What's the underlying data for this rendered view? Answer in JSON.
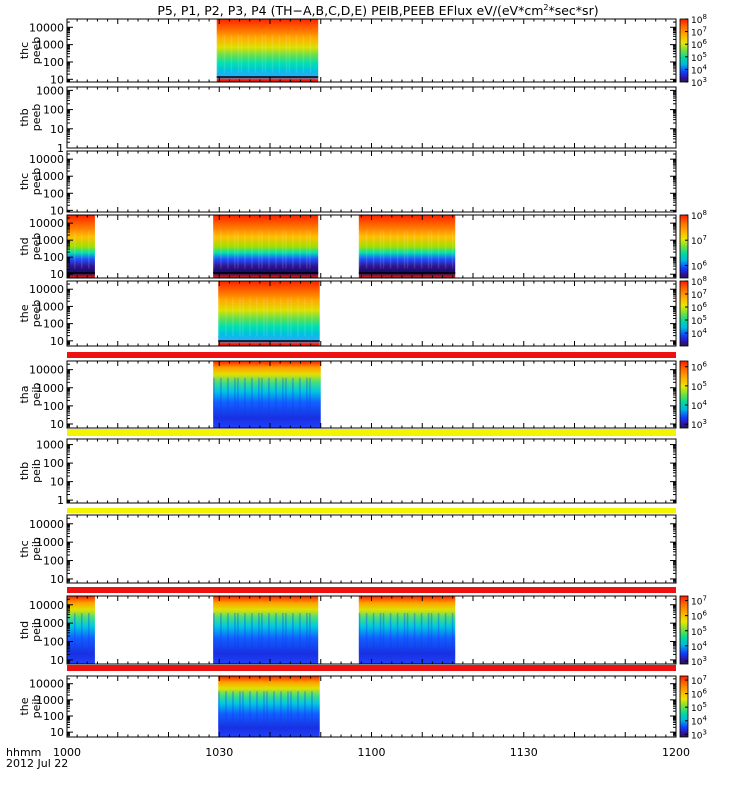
{
  "title_parts": [
    "P5, P1, P2, P3, P4 (TH−A,B,C,D,E) PEIB,PEEB EFlux eV/(eV*cm",
    "2",
    "*sec*sr)"
  ],
  "time_axis": {
    "label1": "hhmm",
    "label2": "2012 Jul 22",
    "ticks": [
      "1000",
      "1030",
      "1100",
      "1130",
      "1200"
    ]
  },
  "chart_data": {
    "type": "heatmap",
    "title": "P5, P1, P2, P3, P4 (TH-A,B,C,D,E) PEIB,PEEB EFlux eV/(eV*cm2*sec*sr)",
    "xlabel": "hhmm / 2012 Jul 22",
    "x_range_minutes": [
      0,
      120
    ],
    "x_ticks": [
      "1000",
      "1030",
      "1100",
      "1130",
      "1200"
    ],
    "panels": [
      {
        "name": "thc-peeb-a",
        "label1": "thc",
        "label2": "peeb",
        "ylim": [
          7,
          30000
        ],
        "ticks": [
          "10",
          "100",
          "1000",
          "10000"
        ],
        "data_segments": [
          [
            29.5,
            49.5
          ]
        ],
        "lineband": true,
        "cbar": {
          "ticks": [
            {
              "b": "10",
              "e": "8"
            },
            {
              "b": "10",
              "e": "7"
            },
            {
              "b": "10",
              "e": "6"
            },
            {
              "b": "10",
              "e": "5"
            },
            {
              "b": "10",
              "e": "4"
            },
            {
              "b": "10",
              "e": "3"
            }
          ],
          "range": [
            3,
            8
          ]
        }
      },
      {
        "name": "thb-peeb",
        "label1": "thb",
        "label2": "peeb",
        "ylim": [
          1,
          1500
        ],
        "ticks": [
          "1",
          "10",
          "100",
          "1000"
        ],
        "data_segments": [],
        "lineband": false,
        "cbar": null
      },
      {
        "name": "thc-peeb",
        "label1": "thc",
        "label2": "peeb",
        "ylim": [
          8,
          30000
        ],
        "ticks": [
          "10",
          "100",
          "1000",
          "10000"
        ],
        "data_segments": [],
        "lineband": false,
        "cbar": null
      },
      {
        "name": "thd-peeb",
        "label1": "thd",
        "label2": "peeb",
        "ylim": [
          6,
          30000
        ],
        "ticks": [
          "10",
          "100",
          "1000",
          "10000"
        ],
        "data_segments": [
          [
            -9.8,
            5.5
          ],
          [
            28.8,
            49.5
          ],
          [
            57.5,
            76.5
          ]
        ],
        "lineband": true,
        "cbar": {
          "ticks": [
            {
              "b": "10",
              "e": "8"
            },
            {
              "b": "10",
              "e": "7"
            },
            {
              "b": "10",
              "e": "6"
            }
          ],
          "range": [
            5.5,
            8
          ]
        }
      },
      {
        "name": "the-peeb",
        "label1": "the",
        "label2": "peeb",
        "ylim": [
          5,
          30000
        ],
        "ticks": [
          "10",
          "100",
          "1000",
          "10000"
        ],
        "data_segments": [
          [
            29.8,
            49.8
          ]
        ],
        "lineband": true,
        "cbar": {
          "ticks": [
            {
              "b": "10",
              "e": "8"
            },
            {
              "b": "10",
              "e": "7"
            },
            {
              "b": "10",
              "e": "6"
            },
            {
              "b": "10",
              "e": "5"
            },
            {
              "b": "10",
              "e": "4"
            }
          ],
          "range": [
            3,
            8
          ]
        }
      },
      {
        "name": "tha-peib",
        "label1": "tha",
        "label2": "peib",
        "ylim": [
          6,
          30000
        ],
        "ticks": [
          "10",
          "100",
          "1000",
          "10000"
        ],
        "top_band": "#ee1111",
        "data_segments": [
          [
            28.8,
            50
          ]
        ],
        "lineband": false,
        "cbar": {
          "ticks": [
            {
              "b": "10",
              "e": "6"
            },
            {
              "b": "10",
              "e": "5"
            },
            {
              "b": "10",
              "e": "4"
            },
            {
              "b": "10",
              "e": "3"
            }
          ],
          "range": [
            2.8,
            6.3
          ]
        }
      },
      {
        "name": "thb-peib",
        "label1": "thb",
        "label2": "peib",
        "ylim": [
          0.7,
          2000
        ],
        "ticks": [
          "1",
          "10",
          "100",
          "1000"
        ],
        "top_band": "#f4f400",
        "data_segments": [],
        "lineband": false,
        "cbar": null
      },
      {
        "name": "thc-peib",
        "label1": "thc",
        "label2": "peib",
        "ylim": [
          6,
          30000
        ],
        "ticks": [
          "10",
          "100",
          "1000",
          "10000"
        ],
        "top_band": "#f4f400",
        "data_segments": [],
        "lineband": false,
        "cbar": null
      },
      {
        "name": "thd-peib",
        "label1": "thd",
        "label2": "peib",
        "ylim": [
          6,
          30000
        ],
        "ticks": [
          "10",
          "100",
          "1000",
          "10000"
        ],
        "top_band": "#ee1111",
        "data_segments": [
          [
            -9.8,
            5.5
          ],
          [
            28.8,
            49.5
          ],
          [
            57.5,
            76.5
          ]
        ],
        "lineband": false,
        "cbar": {
          "ticks": [
            {
              "b": "10",
              "e": "7"
            },
            {
              "b": "10",
              "e": "6"
            },
            {
              "b": "10",
              "e": "5"
            },
            {
              "b": "10",
              "e": "4"
            },
            {
              "b": "10",
              "e": "3"
            }
          ],
          "range": [
            2.8,
            7.3
          ]
        }
      },
      {
        "name": "the-peib",
        "label1": "the",
        "label2": "peib",
        "ylim": [
          5,
          30000
        ],
        "ticks": [
          "10",
          "100",
          "1000",
          "10000"
        ],
        "top_band": "#ee1111",
        "data_segments": [
          [
            29.8,
            49.8
          ]
        ],
        "lineband": false,
        "cbar": {
          "ticks": [
            {
              "b": "10",
              "e": "7"
            },
            {
              "b": "10",
              "e": "6"
            },
            {
              "b": "10",
              "e": "5"
            },
            {
              "b": "10",
              "e": "4"
            },
            {
              "b": "10",
              "e": "3"
            }
          ],
          "range": [
            2.8,
            7.3
          ]
        }
      }
    ]
  },
  "colors": {
    "red": "#ee1111",
    "yellow": "#f4f400",
    "axis": "#000000"
  }
}
